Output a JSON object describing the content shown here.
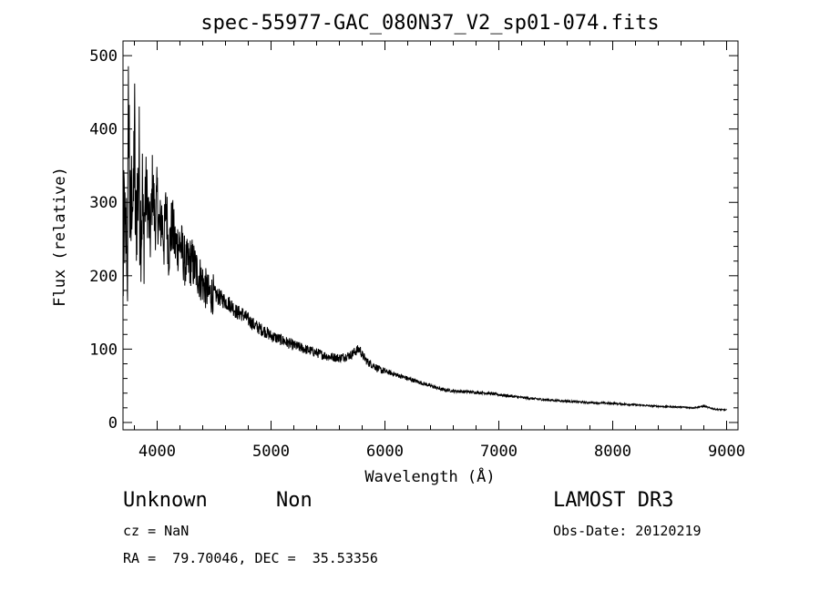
{
  "chart_data": {
    "type": "line",
    "title": "spec-55977-GAC_080N37_V2_sp01-074.fits",
    "xlabel": "Wavelength (Å)",
    "ylabel": "Flux (relative)",
    "xlim": [
      3700,
      9100
    ],
    "ylim": [
      -10,
      520
    ],
    "xticks": [
      4000,
      5000,
      6000,
      7000,
      8000,
      9000
    ],
    "yticks": [
      0,
      100,
      200,
      300,
      400,
      500
    ],
    "series": [
      {
        "name": "flux",
        "x": [
          3700,
          3710,
          3720,
          3730,
          3740,
          3750,
          3760,
          3770,
          3780,
          3790,
          3800,
          3810,
          3820,
          3830,
          3840,
          3850,
          3860,
          3870,
          3880,
          3890,
          3900,
          3920,
          3940,
          3960,
          3980,
          4000,
          4020,
          4040,
          4060,
          4080,
          4100,
          4130,
          4160,
          4200,
          4250,
          4300,
          4350,
          4400,
          4450,
          4500,
          4550,
          4600,
          4650,
          4700,
          4750,
          4800,
          4850,
          4900,
          4950,
          5000,
          5100,
          5200,
          5300,
          5400,
          5500,
          5600,
          5700,
          5750,
          5780,
          5800,
          5850,
          5900,
          5950,
          6000,
          6100,
          6200,
          6300,
          6400,
          6500,
          6600,
          6700,
          6800,
          6900,
          7000,
          7200,
          7400,
          7600,
          7800,
          8000,
          8200,
          8400,
          8600,
          8700,
          8800,
          8900,
          9000
        ],
        "values": [
          160,
          300,
          240,
          260,
          200,
          470,
          290,
          260,
          350,
          270,
          420,
          250,
          300,
          310,
          360,
          280,
          270,
          310,
          240,
          290,
          320,
          290,
          250,
          330,
          270,
          305,
          260,
          280,
          245,
          300,
          230,
          270,
          240,
          245,
          215,
          220,
          205,
          190,
          175,
          175,
          170,
          165,
          160,
          150,
          148,
          140,
          133,
          128,
          124,
          118,
          112,
          105,
          100,
          95,
          90,
          88,
          92,
          98,
          100,
          92,
          82,
          78,
          72,
          70,
          65,
          60,
          55,
          50,
          45,
          43,
          42,
          41,
          40,
          38,
          34,
          31,
          29,
          27,
          26,
          24,
          22,
          21,
          20,
          22,
          18,
          17
        ]
      }
    ]
  },
  "info": {
    "class": "Unknown",
    "subclass": "Non",
    "cz": "cz = NaN",
    "coords": "RA =  79.70046, DEC =  35.53356",
    "survey": "LAMOST DR3",
    "obsdate": "Obs-Date: 20120219"
  }
}
